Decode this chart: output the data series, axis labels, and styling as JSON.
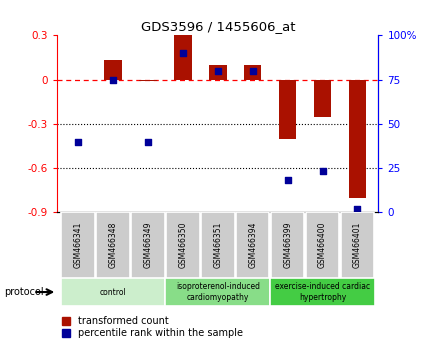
{
  "title": "GDS3596 / 1455606_at",
  "samples": [
    "GSM466341",
    "GSM466348",
    "GSM466349",
    "GSM466350",
    "GSM466351",
    "GSM466394",
    "GSM466399",
    "GSM466400",
    "GSM466401"
  ],
  "red_values": [
    0.0,
    0.13,
    -0.01,
    0.3,
    0.1,
    0.1,
    -0.4,
    -0.25,
    -0.8
  ],
  "blue_values": [
    -0.42,
    0.0,
    -0.42,
    0.18,
    0.06,
    0.06,
    -0.68,
    -0.62,
    -0.88
  ],
  "ylim_left": [
    -0.9,
    0.3
  ],
  "ylim_right": [
    0,
    100
  ],
  "yticks_left": [
    -0.9,
    -0.6,
    -0.3,
    0.0,
    0.3
  ],
  "yticks_right": [
    0,
    25,
    50,
    75,
    100
  ],
  "ytick_labels_left": [
    "-0.9",
    "-0.6",
    "-0.3",
    "0",
    "0.3"
  ],
  "ytick_labels_right": [
    "0",
    "25",
    "50",
    "75",
    "100%"
  ],
  "red_color": "#AA1100",
  "blue_color": "#000099",
  "bar_width": 0.5,
  "groups": [
    {
      "label": "control",
      "start": 0,
      "end": 3,
      "color": "#cceecc"
    },
    {
      "label": "isoproterenol-induced\ncardiomyopathy",
      "start": 3,
      "end": 6,
      "color": "#88dd88"
    },
    {
      "label": "exercise-induced cardiac\nhypertrophy",
      "start": 6,
      "end": 9,
      "color": "#44cc44"
    }
  ],
  "protocol_label": "protocol",
  "legend_red": "transformed count",
  "legend_blue": "percentile rank within the sample",
  "plot_bg": "#ffffff",
  "fig_bg": "#ffffff"
}
